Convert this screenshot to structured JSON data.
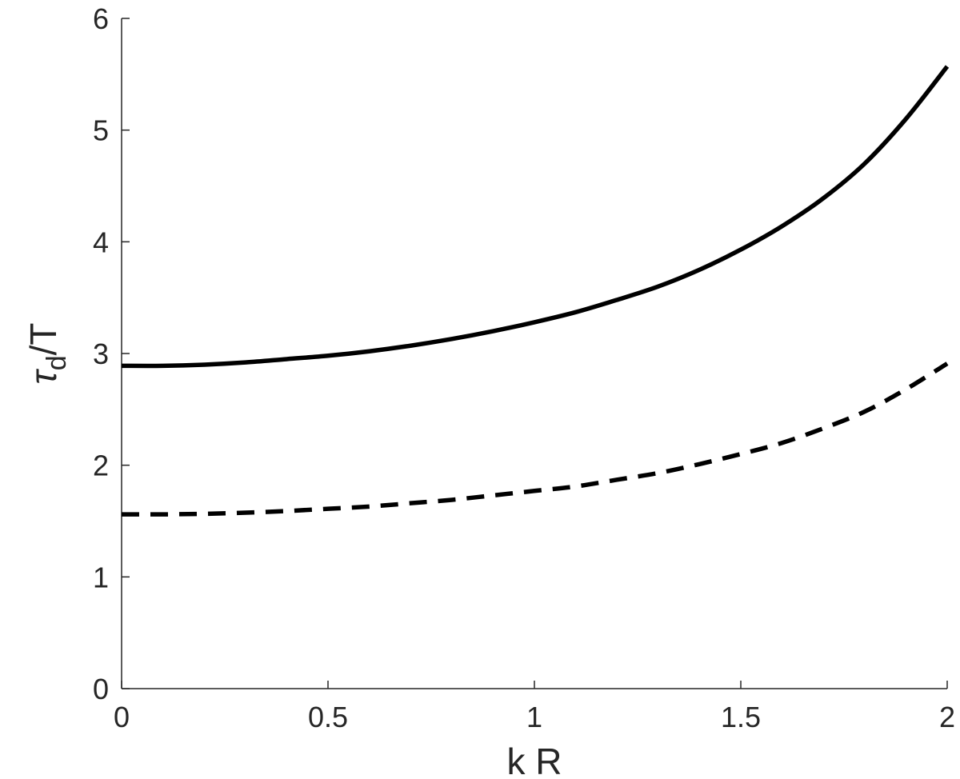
{
  "chart_data": {
    "type": "line",
    "title": "",
    "xlabel": "k R",
    "ylabel": {
      "main": "τ",
      "subscript": "d",
      "suffix": "/T"
    },
    "xlim": [
      0,
      2
    ],
    "ylim": [
      0,
      6
    ],
    "xticks": [
      0,
      0.5,
      1,
      1.5,
      2
    ],
    "xtick_labels": [
      "0",
      "0.5",
      "1",
      "1.5",
      "2"
    ],
    "yticks": [
      0,
      1,
      2,
      3,
      4,
      5,
      6
    ],
    "ytick_labels": [
      "0",
      "1",
      "2",
      "3",
      "4",
      "5",
      "6"
    ],
    "grid": false,
    "legend": "none",
    "series": [
      {
        "style": "solid",
        "color": "#000000",
        "x": [
          0,
          0.1,
          0.2,
          0.3,
          0.4,
          0.5,
          0.6,
          0.7,
          0.8,
          0.9,
          1.0,
          1.1,
          1.2,
          1.3,
          1.4,
          1.5,
          1.6,
          1.7,
          1.8,
          1.9,
          2.0
        ],
        "y": [
          2.89,
          2.89,
          2.9,
          2.92,
          2.95,
          2.98,
          3.02,
          3.07,
          3.13,
          3.2,
          3.28,
          3.37,
          3.48,
          3.6,
          3.75,
          3.93,
          4.14,
          4.39,
          4.7,
          5.1,
          5.57
        ]
      },
      {
        "style": "dashed",
        "color": "#000000",
        "x": [
          0,
          0.1,
          0.2,
          0.3,
          0.4,
          0.5,
          0.6,
          0.7,
          0.8,
          0.9,
          1.0,
          1.1,
          1.2,
          1.3,
          1.4,
          1.5,
          1.6,
          1.7,
          1.8,
          1.9,
          2.0
        ],
        "y": [
          1.56,
          1.56,
          1.565,
          1.575,
          1.59,
          1.61,
          1.63,
          1.66,
          1.69,
          1.73,
          1.77,
          1.81,
          1.87,
          1.93,
          2.01,
          2.1,
          2.2,
          2.33,
          2.48,
          2.68,
          2.91
        ]
      }
    ]
  }
}
